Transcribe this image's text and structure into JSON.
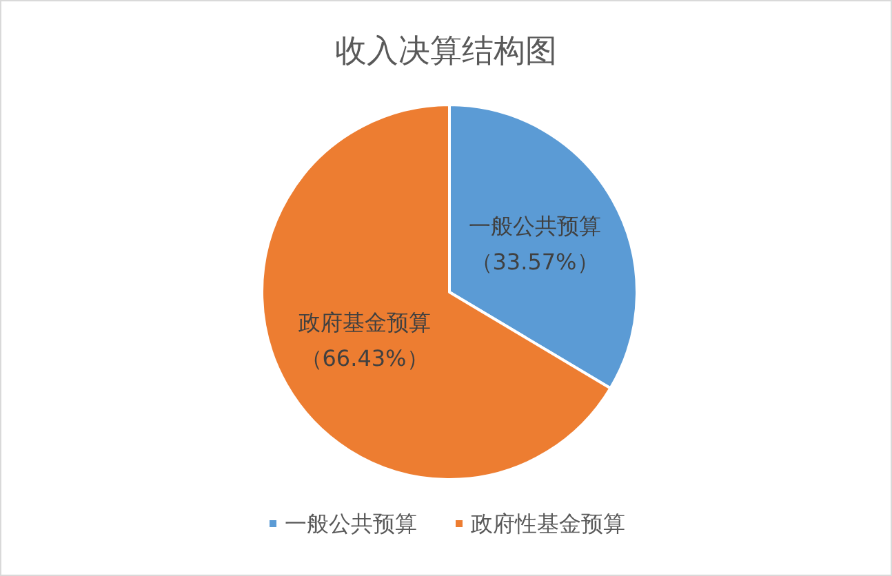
{
  "chart_data": {
    "type": "pie",
    "title": "收入决算结构图",
    "categories": [
      "一般公共预算",
      "政府性基金预算"
    ],
    "values": [
      33.57,
      66.43
    ],
    "colors": [
      "#5b9bd5",
      "#ed7d31"
    ],
    "value_labels": [
      "一般公共预算（33.57%）",
      "政府基金预算（66.43%）"
    ],
    "legend": "bottom"
  }
}
